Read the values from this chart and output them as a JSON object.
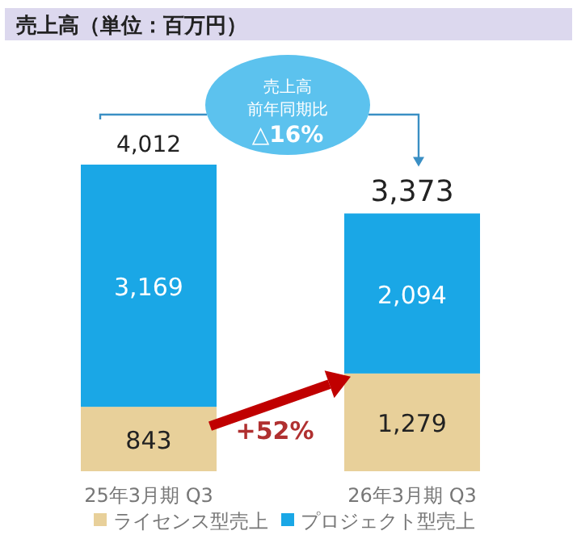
{
  "chart_data": {
    "type": "bar",
    "stacked": true,
    "title": "売上高（単位：百万円）",
    "categories": [
      "25年3月期 Q3",
      "26年3月期 Q3"
    ],
    "series": [
      {
        "name": "ライセンス型売上",
        "color": "#e8d09a",
        "values": [
          843,
          1279
        ],
        "value_labels": [
          "843",
          "1,279"
        ]
      },
      {
        "name": "プロジェクト型売上",
        "color": "#1aa7e6",
        "values": [
          3169,
          2094
        ],
        "value_labels": [
          "3,169",
          "2,094"
        ]
      }
    ],
    "totals": [
      "4,012",
      "3,373"
    ],
    "annotations": [
      "売上高",
      "前年同期比",
      "△16%",
      "+52%"
    ],
    "legend": "bottom"
  }
}
